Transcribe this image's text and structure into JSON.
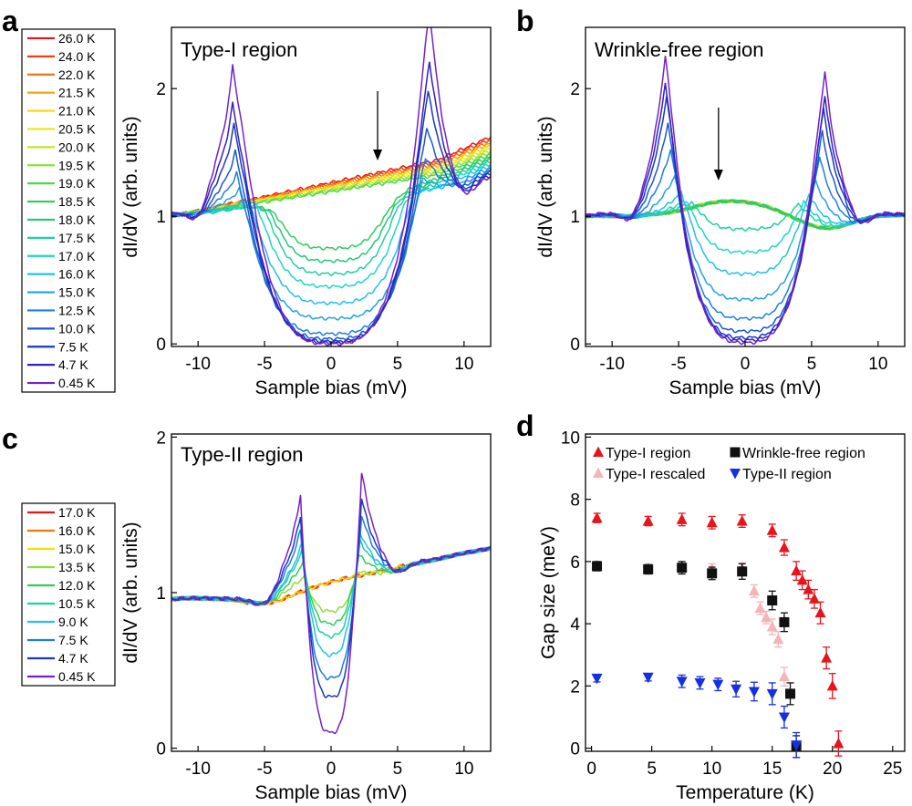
{
  "chart_data": [
    {
      "panel": "a",
      "type": "line",
      "title": "Type-I region",
      "xlabel": "Sample bias (mV)",
      "ylabel": "dI/dV (arb. units)",
      "xlim": [
        -12,
        12
      ],
      "ylim": [
        -0.02,
        2.48
      ],
      "xticks": [
        "-10",
        "-5",
        "0",
        "5",
        "10"
      ],
      "yticks": [
        "0",
        "1",
        "2"
      ],
      "arrow_at_bias": 3.5,
      "legend": [
        "26.0 K",
        "24.0 K",
        "22.0 K",
        "21.5 K",
        "21.0 K",
        "20.5 K",
        "20.0 K",
        "19.5 K",
        "19.0 K",
        "18.5 K",
        "18.0 K",
        "17.5 K",
        "17.0 K",
        "16.0 K",
        "15.0 K",
        "12.5 K",
        "10.0 K",
        "7.5 K",
        "4.7 K",
        "0.45 K"
      ],
      "series_colors": [
        "#e8141c",
        "#f0400e",
        "#f5740c",
        "#f7a20a",
        "#f7d60a",
        "#e3ea1a",
        "#bde82a",
        "#8de03a",
        "#4cd84c",
        "#2ecc5a",
        "#22c878",
        "#1fd0a0",
        "#1ed6c8",
        "#22c0ea",
        "#1fa0e8",
        "#1c7ee0",
        "#1a58d0",
        "#1838c0",
        "#3320c0",
        "#7420c8"
      ],
      "gap_mV": [
        null,
        null,
        null,
        null,
        null,
        null,
        null,
        null,
        null,
        4.2,
        4.6,
        5.0,
        5.6,
        6.2,
        6.9,
        7.1,
        7.2,
        7.3,
        7.4,
        7.4
      ],
      "peak_height": [
        1.0,
        1.0,
        1.0,
        1.0,
        1.0,
        1.0,
        1.0,
        1.0,
        1.0,
        1.02,
        1.04,
        1.06,
        1.1,
        1.15,
        1.25,
        1.4,
        1.6,
        1.85,
        2.05,
        2.4
      ],
      "zero_bias_value": [
        1.22,
        1.2,
        1.17,
        1.14,
        1.1,
        1.06,
        1.0,
        0.93,
        0.85,
        0.75,
        0.65,
        0.55,
        0.45,
        0.32,
        0.2,
        0.08,
        0.04,
        0.02,
        0.01,
        0.0
      ]
    },
    {
      "panel": "b",
      "type": "line",
      "title": "Wrinkle-free region",
      "xlabel": "Sample bias (mV)",
      "ylabel": "dI/dV (arb. units)",
      "xlim": [
        -12,
        12
      ],
      "ylim": [
        -0.02,
        2.48
      ],
      "xticks": [
        "-10",
        "-5",
        "0",
        "5",
        "10"
      ],
      "yticks": [
        "0",
        "1",
        "2"
      ],
      "arrow_at_bias": -2,
      "gap_mV": [
        null,
        null,
        null,
        null,
        null,
        null,
        null,
        null,
        null,
        null,
        null,
        4.0,
        4.4,
        4.8,
        5.3,
        5.6,
        5.8,
        5.9,
        6.0,
        6.0
      ],
      "peak_height": [
        1.1,
        1.1,
        1.1,
        1.1,
        1.1,
        1.1,
        1.1,
        1.1,
        1.1,
        1.1,
        1.1,
        1.1,
        1.12,
        1.18,
        1.3,
        1.5,
        1.7,
        1.9,
        2.0,
        2.2
      ],
      "zero_bias_value": [
        1.15,
        1.13,
        1.1,
        1.08,
        1.06,
        1.04,
        1.03,
        1.02,
        1.0,
        0.98,
        0.95,
        0.9,
        0.72,
        0.55,
        0.35,
        0.2,
        0.1,
        0.05,
        0.03,
        0.01
      ]
    },
    {
      "panel": "c",
      "type": "line",
      "title": "Type-II region",
      "xlabel": "Sample bias (mV)",
      "ylabel": "dI/dV (arb. units)",
      "xlim": [
        -12,
        12
      ],
      "ylim": [
        -0.02,
        2.02
      ],
      "xticks": [
        "-10",
        "-5",
        "0",
        "5",
        "10"
      ],
      "yticks": [
        "0",
        "1",
        "2"
      ],
      "legend": [
        "17.0 K",
        "16.0 K",
        "15.0 K",
        "13.5 K",
        "12.0 K",
        "10.5 K",
        "9.0 K",
        "7.5 K",
        "4.7 K",
        "0.45 K"
      ],
      "series_colors": [
        "#e8141c",
        "#f5740c",
        "#f0e00c",
        "#8de03a",
        "#2ecc5a",
        "#1fd0a0",
        "#22c0ea",
        "#1c7ee0",
        "#1838c0",
        "#7420c8"
      ],
      "gap_mV": [
        null,
        null,
        null,
        2.0,
        2.1,
        2.2,
        2.2,
        2.3,
        2.3,
        2.3
      ],
      "peak_height": [
        1.0,
        1.0,
        1.0,
        1.12,
        1.22,
        1.3,
        1.35,
        1.45,
        1.55,
        1.7
      ],
      "zero_bias_value": [
        1.0,
        0.97,
        0.93,
        0.88,
        0.8,
        0.72,
        0.6,
        0.45,
        0.33,
        0.1
      ]
    },
    {
      "panel": "d",
      "type": "scatter",
      "xlabel": "Temperature (K)",
      "ylabel": "Gap size (meV)",
      "xlim": [
        -0.5,
        26
      ],
      "ylim": [
        -0.1,
        10.1
      ],
      "xticks": [
        0,
        5,
        10,
        15,
        20,
        25
      ],
      "yticks": [
        0,
        2,
        4,
        6,
        8,
        10
      ],
      "series": [
        {
          "name": "Type-I region",
          "color": "#e8141c",
          "marker": "triangle-up",
          "x": [
            0.45,
            4.7,
            7.5,
            10.0,
            12.5,
            15.0,
            16.0,
            17.0,
            17.5,
            18.0,
            18.5,
            19.0,
            19.5,
            20.0,
            20.5
          ],
          "y": [
            7.4,
            7.3,
            7.35,
            7.25,
            7.3,
            7.0,
            6.45,
            5.7,
            5.4,
            5.1,
            4.8,
            4.35,
            2.9,
            2.0,
            0.15
          ],
          "err": [
            0.15,
            0.15,
            0.2,
            0.2,
            0.2,
            0.2,
            0.25,
            0.3,
            0.3,
            0.3,
            0.3,
            0.35,
            0.35,
            0.4,
            0.4
          ]
        },
        {
          "name": "Wrinkle-free region",
          "color": "#111111",
          "marker": "square",
          "x": [
            0.45,
            4.7,
            7.5,
            10.0,
            12.5,
            15.0,
            16.0,
            16.5,
            17.0
          ],
          "y": [
            5.85,
            5.75,
            5.8,
            5.62,
            5.68,
            4.75,
            4.05,
            1.75,
            0.05
          ],
          "err": [
            0.15,
            0.15,
            0.2,
            0.2,
            0.25,
            0.3,
            0.3,
            0.35,
            0.35
          ]
        },
        {
          "name": "Type-I rescaled",
          "color": "#f4b4b8",
          "marker": "triangle-up",
          "x": [
            0.45,
            4.7,
            7.5,
            10.0,
            12.5,
            13.5,
            14.0,
            14.5,
            15.0,
            15.5,
            16.0
          ],
          "y": [
            5.88,
            5.8,
            5.85,
            5.78,
            5.8,
            5.05,
            4.5,
            4.2,
            3.9,
            3.5,
            2.3
          ],
          "err": [
            0.1,
            0.1,
            0.15,
            0.15,
            0.15,
            0.2,
            0.2,
            0.2,
            0.25,
            0.25,
            0.3
          ]
        },
        {
          "name": "Type-II region",
          "color": "#1430e0",
          "marker": "triangle-down",
          "x": [
            0.45,
            4.7,
            7.5,
            9.0,
            10.5,
            12.0,
            13.5,
            15.0,
            16.0,
            17.0
          ],
          "y": [
            2.25,
            2.28,
            2.15,
            2.1,
            2.05,
            1.9,
            1.82,
            1.75,
            1.0,
            0.1
          ],
          "err": [
            0.12,
            0.12,
            0.2,
            0.2,
            0.2,
            0.25,
            0.3,
            0.35,
            0.35,
            0.4
          ]
        }
      ]
    }
  ]
}
